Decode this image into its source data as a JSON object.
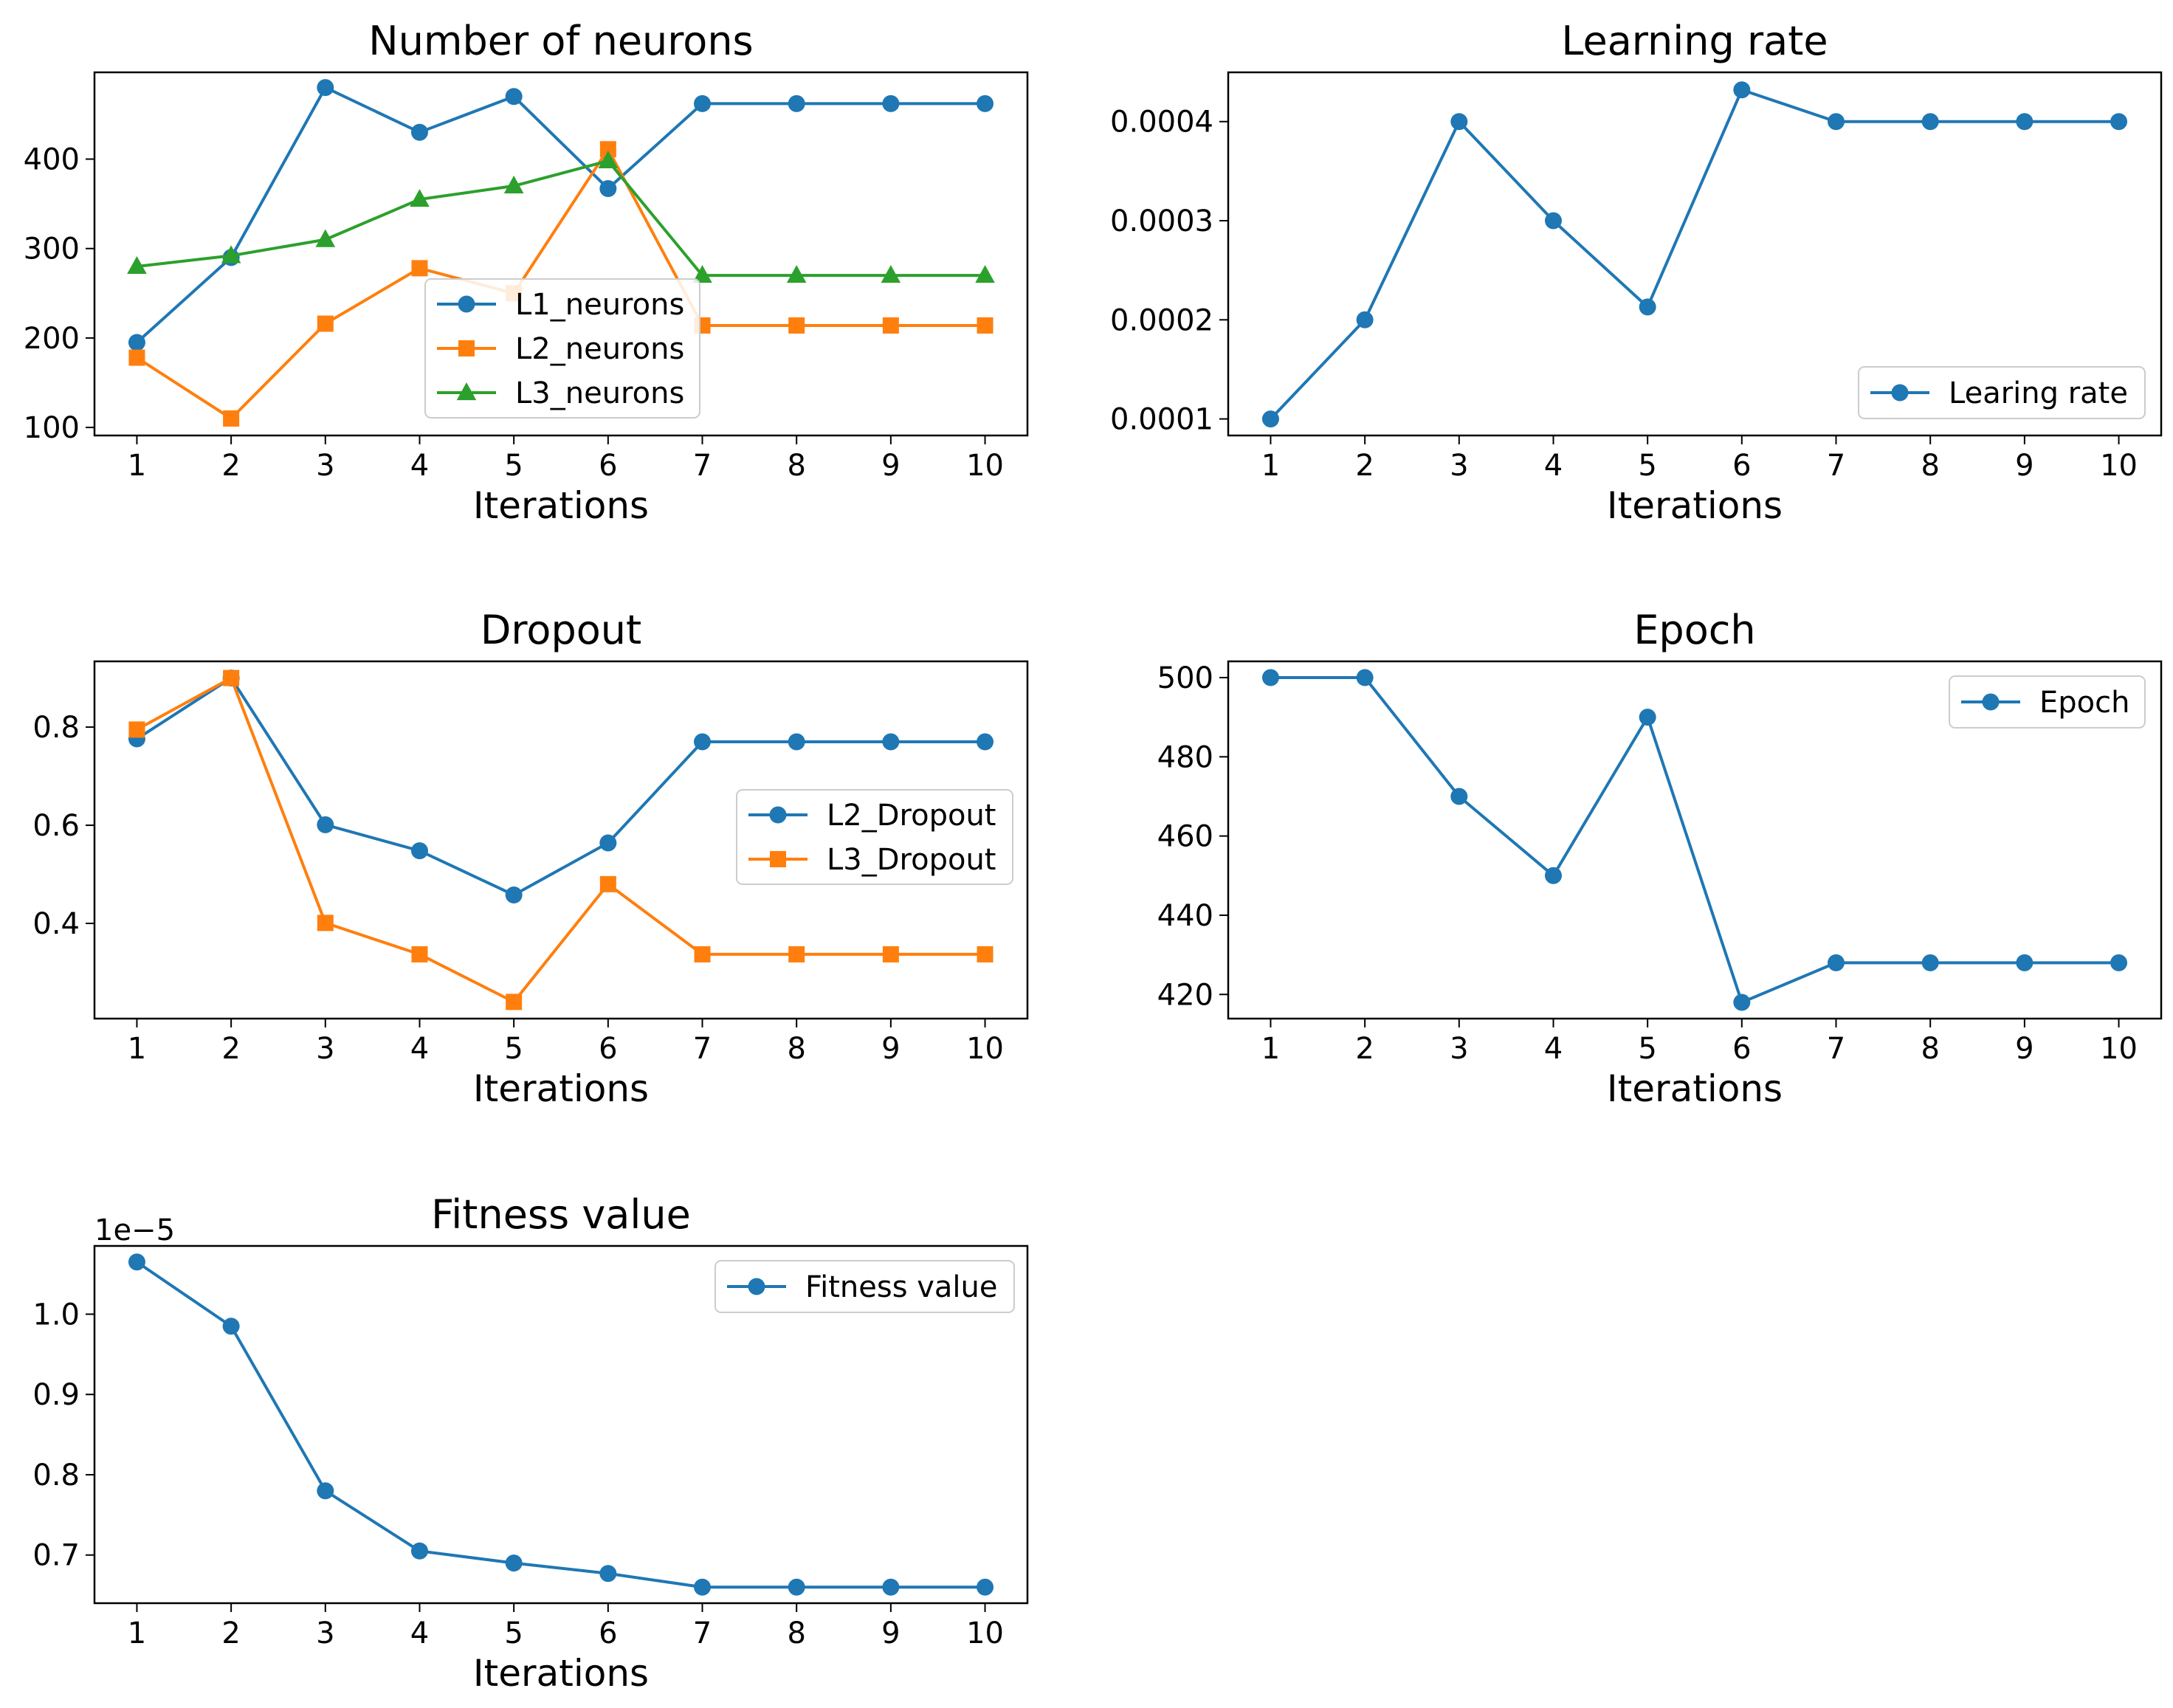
{
  "colors": {
    "blue": "#1f77b4",
    "orange": "#ff7f0e",
    "green": "#2ca02c"
  },
  "chart_data": [
    {
      "type": "line",
      "title": "Number of neurons",
      "xlabel": "Iterations",
      "ylabel": "",
      "x": [
        1,
        2,
        3,
        4,
        5,
        6,
        7,
        8,
        9,
        10
      ],
      "xticks": [
        "1",
        "2",
        "3",
        "4",
        "5",
        "6",
        "7",
        "8",
        "9",
        "10"
      ],
      "xlim": [
        0.55,
        10.45
      ],
      "ylim": [
        91,
        497
      ],
      "yticks": [
        100,
        200,
        300,
        400
      ],
      "ytick_labels": [
        "100",
        "200",
        "300",
        "400"
      ],
      "legend_position": "center",
      "series": [
        {
          "name": "L1_neurons",
          "color": "#1f77b4",
          "marker": "circle",
          "values": [
            195,
            290,
            480,
            430,
            470,
            367,
            462,
            462,
            462,
            462
          ]
        },
        {
          "name": "L2_neurons",
          "color": "#ff7f0e",
          "marker": "square",
          "values": [
            178,
            110,
            216,
            278,
            250,
            411,
            214,
            214,
            214,
            214
          ]
        },
        {
          "name": "L3_neurons",
          "color": "#2ca02c",
          "marker": "triangle",
          "values": [
            280,
            292,
            310,
            355,
            370,
            398,
            270,
            270,
            270,
            270
          ]
        }
      ]
    },
    {
      "type": "line",
      "title": "Learning rate",
      "xlabel": "Iterations",
      "ylabel": "",
      "x": [
        1,
        2,
        3,
        4,
        5,
        6,
        7,
        8,
        9,
        10
      ],
      "xticks": [
        "1",
        "2",
        "3",
        "4",
        "5",
        "6",
        "7",
        "8",
        "9",
        "10"
      ],
      "xlim": [
        0.55,
        10.45
      ],
      "ylim": [
        8.33e-05,
        0.0004497
      ],
      "yticks": [
        0.0001,
        0.0002,
        0.0003,
        0.0004
      ],
      "ytick_labels": [
        "0.0001",
        "0.0002",
        "0.0003",
        "0.0004"
      ],
      "legend_position": "lower right",
      "series": [
        {
          "name": "Learing rate",
          "color": "#1f77b4",
          "marker": "circle",
          "values": [
            0.0001,
            0.0002,
            0.0004,
            0.0003,
            0.000213,
            0.000432,
            0.0004,
            0.0004,
            0.0004,
            0.0004
          ]
        }
      ]
    },
    {
      "type": "line",
      "title": "Dropout",
      "xlabel": "Iterations",
      "ylabel": "",
      "x": [
        1,
        2,
        3,
        4,
        5,
        6,
        7,
        8,
        9,
        10
      ],
      "xticks": [
        "1",
        "2",
        "3",
        "4",
        "5",
        "6",
        "7",
        "8",
        "9",
        "10"
      ],
      "xlim": [
        0.55,
        10.45
      ],
      "ylim": [
        0.206,
        0.934
      ],
      "yticks": [
        0.4,
        0.6,
        0.8
      ],
      "ytick_labels": [
        "0.4",
        "0.6",
        "0.8"
      ],
      "legend_position": "center right",
      "series": [
        {
          "name": "L2_Dropout",
          "color": "#1f77b4",
          "marker": "circle",
          "values": [
            0.776,
            0.9,
            0.601,
            0.548,
            0.458,
            0.564,
            0.77,
            0.77,
            0.77,
            0.77
          ]
        },
        {
          "name": "L3_Dropout",
          "color": "#ff7f0e",
          "marker": "square",
          "values": [
            0.795,
            0.9,
            0.401,
            0.337,
            0.24,
            0.48,
            0.337,
            0.337,
            0.337,
            0.337
          ]
        }
      ]
    },
    {
      "type": "line",
      "title": "Epoch",
      "xlabel": "Iterations",
      "ylabel": "",
      "x": [
        1,
        2,
        3,
        4,
        5,
        6,
        7,
        8,
        9,
        10
      ],
      "xticks": [
        "1",
        "2",
        "3",
        "4",
        "5",
        "6",
        "7",
        "8",
        "9",
        "10"
      ],
      "xlim": [
        0.55,
        10.45
      ],
      "ylim": [
        413.9,
        504.1
      ],
      "yticks": [
        420,
        440,
        460,
        480,
        500
      ],
      "ytick_labels": [
        "420",
        "440",
        "460",
        "480",
        "500"
      ],
      "legend_position": "upper right",
      "series": [
        {
          "name": "Epoch",
          "color": "#1f77b4",
          "marker": "circle",
          "values": [
            500,
            500,
            470,
            450,
            490,
            418,
            428,
            428,
            428,
            428
          ]
        }
      ]
    },
    {
      "type": "line",
      "title": "Fitness value",
      "xlabel": "Iterations",
      "ylabel": "",
      "offset_label": "1e−5",
      "x": [
        1,
        2,
        3,
        4,
        5,
        6,
        7,
        8,
        9,
        10
      ],
      "xticks": [
        "1",
        "2",
        "3",
        "4",
        "5",
        "6",
        "7",
        "8",
        "9",
        "10"
      ],
      "xlim": [
        0.55,
        10.45
      ],
      "ylim": [
        0.64,
        1.085
      ],
      "yticks": [
        0.7,
        0.8,
        0.9,
        1.0
      ],
      "ytick_labels": [
        "0.7",
        "0.8",
        "0.9",
        "1.0"
      ],
      "legend_position": "upper right",
      "series": [
        {
          "name": "Fitness value",
          "color": "#1f77b4",
          "marker": "circle",
          "values": [
            1.065,
            0.985,
            0.78,
            0.705,
            0.69,
            0.677,
            0.66,
            0.66,
            0.66,
            0.66
          ]
        }
      ]
    }
  ]
}
